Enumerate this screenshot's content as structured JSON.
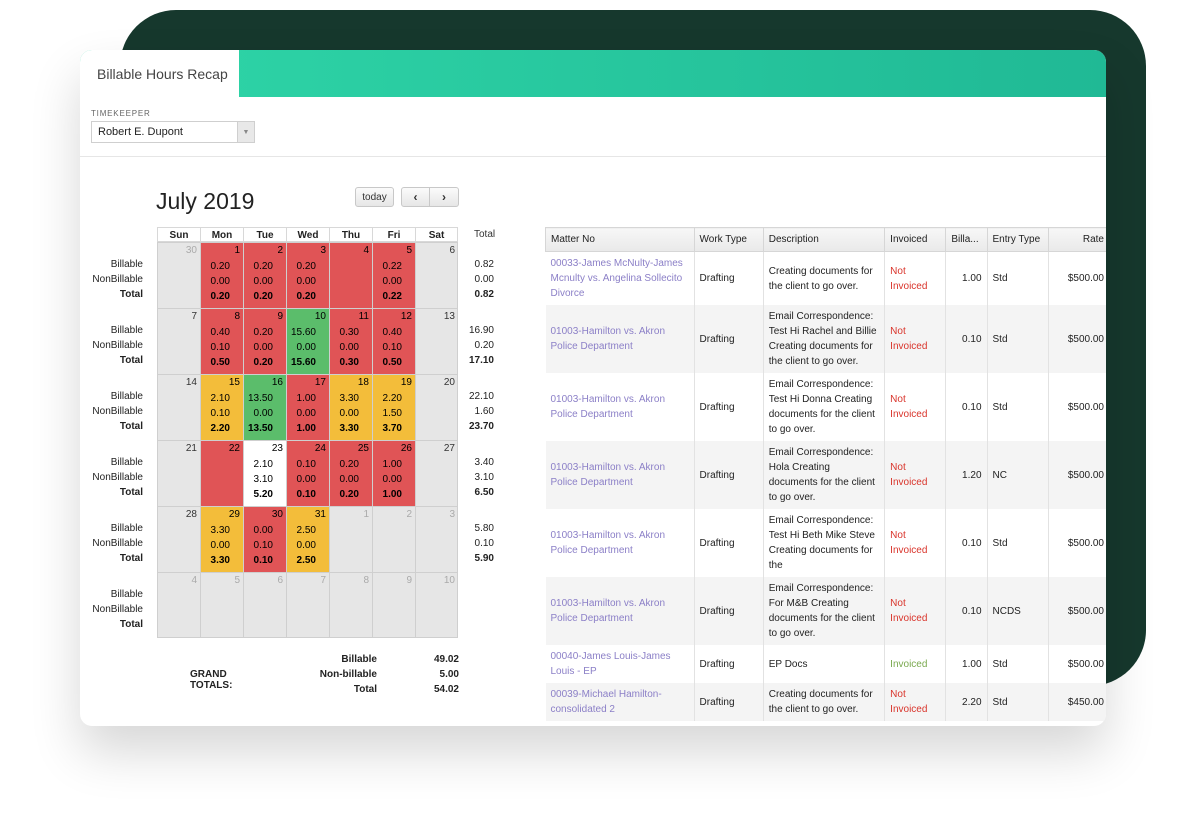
{
  "app": {
    "tab_title": "Billable Hours Recap"
  },
  "timekeeper": {
    "label": "TIMEKEEPER",
    "value": "Robert E. Dupont"
  },
  "calendar": {
    "month_title": "July 2019",
    "today_label": "today",
    "prev_label": "‹",
    "next_label": "›",
    "day_headers": [
      "Sun",
      "Mon",
      "Tue",
      "Wed",
      "Thu",
      "Fri",
      "Sat"
    ],
    "total_header": "Total",
    "row_labels": {
      "billable": "Billable",
      "nonbillable": "NonBillable",
      "total": "Total"
    },
    "weeks": [
      {
        "days": [
          {
            "d": "30",
            "type": "other"
          },
          {
            "d": "1",
            "type": "red",
            "v": [
              "0.20",
              "0.00",
              "0.20"
            ]
          },
          {
            "d": "2",
            "type": "red",
            "v": [
              "0.20",
              "0.00",
              "0.20"
            ]
          },
          {
            "d": "3",
            "type": "red",
            "v": [
              "0.20",
              "0.00",
              "0.20"
            ]
          },
          {
            "d": "4",
            "type": "red"
          },
          {
            "d": "5",
            "type": "red",
            "v": [
              "0.22",
              "0.00",
              "0.22"
            ]
          },
          {
            "d": "6",
            "type": "empty"
          }
        ],
        "totals": [
          "0.82",
          "0.00",
          "0.82"
        ]
      },
      {
        "days": [
          {
            "d": "7",
            "type": "empty"
          },
          {
            "d": "8",
            "type": "red",
            "v": [
              "0.40",
              "0.10",
              "0.50"
            ]
          },
          {
            "d": "9",
            "type": "red",
            "v": [
              "0.20",
              "0.00",
              "0.20"
            ]
          },
          {
            "d": "10",
            "type": "green",
            "v": [
              "15.60",
              "0.00",
              "15.60"
            ]
          },
          {
            "d": "11",
            "type": "red",
            "v": [
              "0.30",
              "0.00",
              "0.30"
            ]
          },
          {
            "d": "12",
            "type": "red",
            "v": [
              "0.40",
              "0.10",
              "0.50"
            ]
          },
          {
            "d": "13",
            "type": "empty"
          }
        ],
        "totals": [
          "16.90",
          "0.20",
          "17.10"
        ]
      },
      {
        "days": [
          {
            "d": "14",
            "type": "empty"
          },
          {
            "d": "15",
            "type": "yellow",
            "v": [
              "2.10",
              "0.10",
              "2.20"
            ]
          },
          {
            "d": "16",
            "type": "green",
            "v": [
              "13.50",
              "0.00",
              "13.50"
            ]
          },
          {
            "d": "17",
            "type": "red",
            "v": [
              "1.00",
              "0.00",
              "1.00"
            ]
          },
          {
            "d": "18",
            "type": "yellow",
            "v": [
              "3.30",
              "0.00",
              "3.30"
            ]
          },
          {
            "d": "19",
            "type": "yellow",
            "v": [
              "2.20",
              "1.50",
              "3.70"
            ]
          },
          {
            "d": "20",
            "type": "empty"
          }
        ],
        "totals": [
          "22.10",
          "1.60",
          "23.70"
        ]
      },
      {
        "days": [
          {
            "d": "21",
            "type": "empty"
          },
          {
            "d": "22",
            "type": "red"
          },
          {
            "d": "23",
            "type": "white",
            "v": [
              "2.10",
              "3.10",
              "5.20"
            ]
          },
          {
            "d": "24",
            "type": "red",
            "v": [
              "0.10",
              "0.00",
              "0.10"
            ]
          },
          {
            "d": "25",
            "type": "red",
            "v": [
              "0.20",
              "0.00",
              "0.20"
            ]
          },
          {
            "d": "26",
            "type": "red",
            "v": [
              "1.00",
              "0.00",
              "1.00"
            ]
          },
          {
            "d": "27",
            "type": "empty"
          }
        ],
        "totals": [
          "3.40",
          "3.10",
          "6.50"
        ]
      },
      {
        "days": [
          {
            "d": "28",
            "type": "empty"
          },
          {
            "d": "29",
            "type": "yellow",
            "v": [
              "3.30",
              "0.00",
              "3.30"
            ]
          },
          {
            "d": "30",
            "type": "red",
            "v": [
              "0.00",
              "0.10",
              "0.10"
            ]
          },
          {
            "d": "31",
            "type": "yellow",
            "v": [
              "2.50",
              "0.00",
              "2.50"
            ]
          },
          {
            "d": "1",
            "type": "other"
          },
          {
            "d": "2",
            "type": "other"
          },
          {
            "d": "3",
            "type": "other"
          }
        ],
        "totals": [
          "5.80",
          "0.10",
          "5.90"
        ]
      },
      {
        "days": [
          {
            "d": "4",
            "type": "other"
          },
          {
            "d": "5",
            "type": "other"
          },
          {
            "d": "6",
            "type": "other"
          },
          {
            "d": "7",
            "type": "other"
          },
          {
            "d": "8",
            "type": "other"
          },
          {
            "d": "9",
            "type": "other"
          },
          {
            "d": "10",
            "type": "other"
          }
        ],
        "totals": [
          "",
          "",
          ""
        ]
      }
    ],
    "grand_totals": {
      "label": "GRAND TOTALS:",
      "billable_label": "Billable",
      "billable": "49.02",
      "nonbillable_label": "Non-billable",
      "nonbillable": "5.00",
      "total_label": "Total",
      "total": "54.02"
    }
  },
  "table": {
    "headers": [
      "Matter No",
      "Work Type",
      "Description",
      "Invoiced",
      "Billa...",
      "Entry Type",
      "Rate"
    ],
    "rows": [
      {
        "matter": "00033-James McNulty-James Mcnulty vs. Angelina Sollecito Divorce",
        "work": "Drafting",
        "desc": "Creating documents for the client to go over.",
        "invoiced": "Not Invoiced",
        "billable": "1.00",
        "entry": "Std",
        "rate": "$500.00"
      },
      {
        "matter": "01003-Hamilton vs. Akron Police Department",
        "work": "Drafting",
        "desc": "Email Correspondence: Test Hi Rachel and Billie Creating documents for the client to go over.",
        "invoiced": "Not Invoiced",
        "billable": "0.10",
        "entry": "Std",
        "rate": "$500.00"
      },
      {
        "matter": "01003-Hamilton vs. Akron Police Department",
        "work": "Drafting",
        "desc": "Email Correspondence: Test Hi Donna Creating documents for the client to go over.",
        "invoiced": "Not Invoiced",
        "billable": "0.10",
        "entry": "Std",
        "rate": "$500.00"
      },
      {
        "matter": "01003-Hamilton vs. Akron Police Department",
        "work": "Drafting",
        "desc": "Email Correspondence: Hola Creating documents for the client to go over.",
        "invoiced": "Not Invoiced",
        "billable": "1.20",
        "entry": "NC",
        "rate": "$500.00"
      },
      {
        "matter": "01003-Hamilton vs. Akron Police Department",
        "work": "Drafting",
        "desc": "Email Correspondence: Test Hi Beth Mike Steve Creating documents for the",
        "invoiced": "Not Invoiced",
        "billable": "0.10",
        "entry": "Std",
        "rate": "$500.00"
      },
      {
        "matter": "01003-Hamilton vs. Akron Police Department",
        "work": "Drafting",
        "desc": "Email Correspondence: For M&B Creating documents for the client to go over.",
        "invoiced": "Not Invoiced",
        "billable": "0.10",
        "entry": "NCDS",
        "rate": "$500.00"
      },
      {
        "matter": "00040-James Louis-James Louis - EP",
        "work": "Drafting",
        "desc": "EP Docs",
        "invoiced": "Invoiced",
        "billable": "1.00",
        "entry": "Std",
        "rate": "$500.00"
      },
      {
        "matter": "00039-Michael Hamilton-consolidated 2",
        "work": "Drafting",
        "desc": "Creating documents for the client to go over.",
        "invoiced": "Not Invoiced",
        "billable": "2.20",
        "entry": "Std",
        "rate": "$450.00"
      }
    ]
  }
}
